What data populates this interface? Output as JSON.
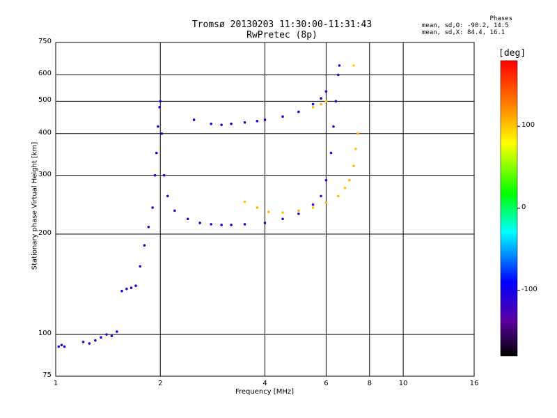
{
  "title_line1": "Tromsø 20130203 11:30:00-11:31:43",
  "title_line2": "RwPretec (8p)",
  "phases_box": {
    "heading": "Phases",
    "line_o": "mean, sd,O: -90.2, 14.5",
    "line_x": "mean, sd,X:  84.4, 16.1"
  },
  "colorbar": {
    "unit_label": "[deg]",
    "ticks": [
      {
        "value": 100,
        "label": "100"
      },
      {
        "value": 0,
        "label": "0"
      },
      {
        "value": -100,
        "label": "-100"
      }
    ],
    "range": [
      -180,
      180
    ]
  },
  "chart_data": {
    "type": "scatter",
    "xlabel": "Frequency [MHz]",
    "ylabel": "Stationary phase Virtual Height [km]",
    "xscale": "log",
    "yscale": "log",
    "xlim": [
      1,
      16
    ],
    "ylim": [
      75,
      750
    ],
    "x_ticks": [
      {
        "value": 1,
        "label": "1"
      },
      {
        "value": 2,
        "label": "2"
      },
      {
        "value": 4,
        "label": "4"
      },
      {
        "value": 6,
        "label": "6"
      },
      {
        "value": 8,
        "label": "8"
      },
      {
        "value": 10,
        "label": "10"
      },
      {
        "value": 16,
        "label": "16"
      }
    ],
    "y_ticks": [
      {
        "value": 75,
        "label": "75"
      },
      {
        "value": 100,
        "label": "100"
      },
      {
        "value": 200,
        "label": "200"
      },
      {
        "value": 300,
        "label": "300"
      },
      {
        "value": 400,
        "label": "400"
      },
      {
        "value": 500,
        "label": "500"
      },
      {
        "value": 600,
        "label": "600"
      },
      {
        "value": 750,
        "label": "750"
      }
    ],
    "grid": true,
    "series": [
      {
        "points": [
          [
            1.02,
            92,
            -110
          ],
          [
            1.04,
            93,
            -105
          ],
          [
            1.06,
            92,
            -100
          ],
          [
            1.2,
            95,
            -115
          ],
          [
            1.25,
            94,
            -110
          ],
          [
            1.3,
            96,
            -108
          ],
          [
            1.35,
            98,
            -112
          ],
          [
            1.4,
            100,
            -105
          ],
          [
            1.45,
            99,
            -110
          ],
          [
            1.5,
            102,
            -100
          ],
          [
            1.55,
            135,
            -105
          ],
          [
            1.6,
            137,
            -110
          ],
          [
            1.65,
            138,
            -108
          ],
          [
            1.7,
            140,
            -102
          ],
          [
            1.75,
            160,
            -110
          ],
          [
            1.8,
            185,
            -112
          ],
          [
            1.85,
            210,
            -108
          ],
          [
            1.9,
            240,
            -105
          ],
          [
            1.93,
            300,
            -110
          ],
          [
            1.95,
            350,
            -108
          ],
          [
            1.97,
            420,
            -105
          ],
          [
            1.99,
            480,
            -102
          ],
          [
            2.0,
            500,
            -100
          ],
          [
            2.02,
            400,
            -105
          ],
          [
            2.05,
            300,
            -110
          ],
          [
            2.1,
            260,
            -112
          ],
          [
            2.2,
            235,
            -115
          ],
          [
            2.4,
            222,
            -112
          ],
          [
            2.6,
            216,
            -110
          ],
          [
            2.8,
            214,
            -108
          ],
          [
            3.0,
            213,
            -105
          ],
          [
            3.2,
            213,
            -110
          ],
          [
            3.5,
            214,
            -112
          ],
          [
            4.0,
            216,
            -110
          ],
          [
            4.5,
            222,
            -108
          ],
          [
            5.0,
            230,
            -105
          ],
          [
            5.5,
            245,
            -110
          ],
          [
            5.8,
            260,
            -112
          ],
          [
            6.0,
            290,
            -108
          ],
          [
            6.2,
            350,
            -105
          ],
          [
            6.3,
            420,
            -110
          ],
          [
            6.4,
            500,
            -112
          ],
          [
            6.5,
            600,
            -115
          ],
          [
            6.55,
            640,
            -110
          ],
          [
            2.5,
            440,
            -108
          ],
          [
            2.8,
            428,
            -110
          ],
          [
            3.0,
            425,
            -112
          ],
          [
            3.2,
            428,
            -108
          ],
          [
            3.5,
            432,
            -105
          ],
          [
            3.8,
            436,
            -110
          ],
          [
            4.0,
            440,
            -108
          ],
          [
            4.5,
            450,
            -105
          ],
          [
            5.0,
            465,
            -110
          ],
          [
            5.5,
            490,
            -108
          ],
          [
            5.8,
            510,
            -105
          ],
          [
            6.0,
            535,
            -110
          ]
        ]
      },
      {
        "points": [
          [
            3.5,
            250,
            100
          ],
          [
            3.8,
            240,
            110
          ],
          [
            4.1,
            233,
            105
          ],
          [
            4.5,
            232,
            100
          ],
          [
            5.0,
            235,
            108
          ],
          [
            5.5,
            240,
            102
          ],
          [
            6.0,
            248,
            110
          ],
          [
            6.5,
            260,
            105
          ],
          [
            6.8,
            275,
            100
          ],
          [
            7.0,
            290,
            108
          ],
          [
            7.2,
            320,
            105
          ],
          [
            7.3,
            360,
            100
          ],
          [
            7.4,
            400,
            108
          ],
          [
            5.5,
            480,
            105
          ],
          [
            5.8,
            490,
            110
          ],
          [
            6.0,
            500,
            100
          ],
          [
            7.2,
            640,
            95
          ]
        ]
      }
    ]
  }
}
